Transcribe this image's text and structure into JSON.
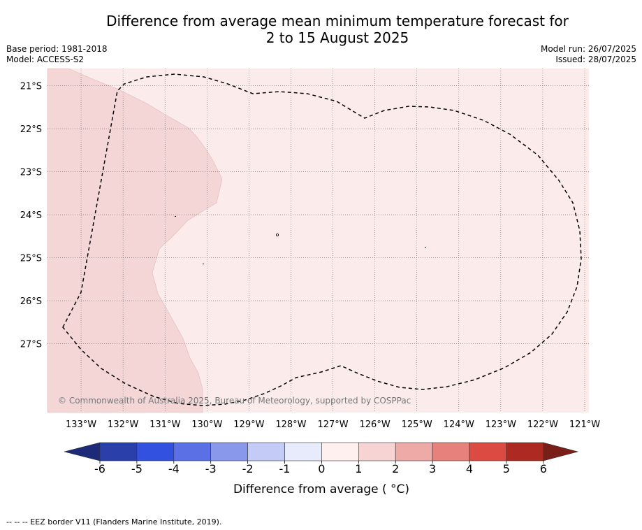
{
  "title_line1": "Difference from average mean minimum temperature forecast for",
  "title_line2": "2 to 15 August 2025",
  "meta_left": {
    "base_period": "Base period: 1981-2018",
    "model": "Model: ACCESS-S2"
  },
  "meta_right": {
    "model_run": "Model run: 26/07/2025",
    "issued": "Issued: 28/07/2025"
  },
  "map": {
    "lon_labels": [
      "133°W",
      "132°W",
      "131°W",
      "130°W",
      "129°W",
      "128°W",
      "127°W",
      "126°W",
      "125°W",
      "124°W",
      "123°W",
      "122°W",
      "121°W"
    ],
    "lat_labels": [
      "21°S",
      "22°S",
      "23°S",
      "24°S",
      "25°S",
      "26°S",
      "27°S"
    ],
    "lon_range": [
      -133.8,
      -120.9
    ],
    "lat_range": [
      -28.6,
      -20.6
    ],
    "copyright": "© Commonwealth of Australia 2025, Bureau of Meteorology, supported by COSPPac",
    "regions": [
      {
        "name": "1 to 2 °C anomaly",
        "color": "#f4d6d6"
      },
      {
        "name": "0 to 1 °C anomaly",
        "color": "#fbebea"
      }
    ]
  },
  "colorbar": {
    "tick_labels": [
      "-6",
      "-5",
      "-4",
      "-3",
      "-2",
      "-1",
      "0",
      "1",
      "2",
      "3",
      "4",
      "5",
      "6"
    ],
    "colors": [
      "#2a3fa9",
      "#3351e0",
      "#5b70e4",
      "#8a98ec",
      "#c4cbf6",
      "#e8ebfb",
      "#fdf0ef",
      "#f6d4d4",
      "#eeaaa7",
      "#e6817b",
      "#db4b42",
      "#ac2a22"
    ],
    "low_extend_color": "#1c2a78",
    "high_extend_color": "#7a1e18",
    "label": "Difference from average ( °C)"
  },
  "footer": "-- -- -- EEZ border V11 (Flanders Marine Institute, 2019)."
}
